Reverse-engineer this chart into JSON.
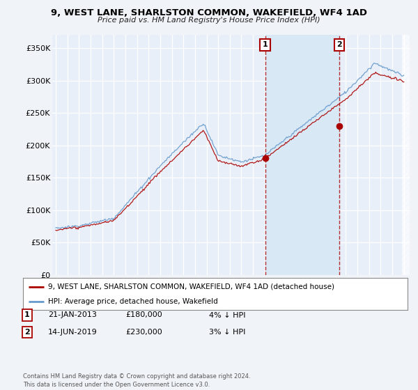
{
  "title": "9, WEST LANE, SHARLSTON COMMON, WAKEFIELD, WF4 1AD",
  "subtitle": "Price paid vs. HM Land Registry's House Price Index (HPI)",
  "background_color": "#f0f4f8",
  "plot_bg_color": "#e8eff8",
  "ylim": [
    0,
    370000
  ],
  "yticks": [
    0,
    50000,
    100000,
    150000,
    200000,
    250000,
    300000,
    350000
  ],
  "ytick_labels": [
    "£0",
    "£50K",
    "£100K",
    "£150K",
    "£200K",
    "£250K",
    "£300K",
    "£350K"
  ],
  "legend_line1": "9, WEST LANE, SHARLSTON COMMON, WAKEFIELD, WF4 1AD (detached house)",
  "legend_line2": "HPI: Average price, detached house, Wakefield",
  "sale1_date": "21-JAN-2013",
  "sale1_price": "£180,000",
  "sale1_hpi": "4% ↓ HPI",
  "sale1_year": 2013.05,
  "sale1_value": 180000,
  "sale2_date": "14-JUN-2019",
  "sale2_price": "£230,000",
  "sale2_hpi": "3% ↓ HPI",
  "sale2_year": 2019.45,
  "sale2_value": 230000,
  "footer": "Contains HM Land Registry data © Crown copyright and database right 2024.\nThis data is licensed under the Open Government Licence v3.0.",
  "line_red_color": "#aa0000",
  "line_blue_color": "#6699cc",
  "shade_between_color": "#d8e8f5",
  "xlim_start": 1994.7,
  "xlim_end": 2025.5
}
